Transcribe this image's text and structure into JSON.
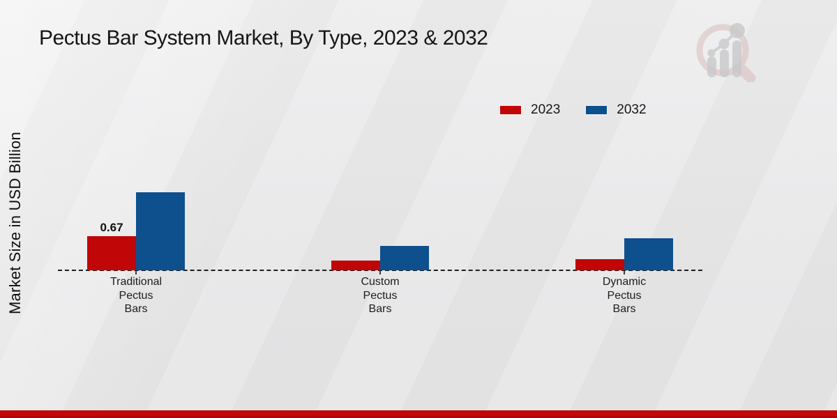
{
  "title": "Pectus Bar System Market, By Type, 2023 & 2032",
  "y_axis_label": "Market Size in USD Billion",
  "legend": [
    {
      "label": "2023",
      "color": "#c00606"
    },
    {
      "label": "2032",
      "color": "#0e4f8e"
    }
  ],
  "colors": {
    "series_2023": "#c00606",
    "series_2032": "#0e4f8e",
    "footer_band": "#c40707",
    "background": "#e8e8e9",
    "baseline": "#1c1c1c"
  },
  "watermark": {
    "name": "market-research-magnifier-logo"
  },
  "chart_data": {
    "type": "bar",
    "title": "Pectus Bar System Market, By Type, 2023 & 2032",
    "ylabel": "Market Size in USD Billion",
    "xlabel": "",
    "categories": [
      "Traditional\nPectus\nBars",
      "Custom\nPectus\nBars",
      "Dynamic\nPectus\nBars"
    ],
    "series": [
      {
        "name": "2023",
        "color": "#c00606",
        "values": [
          0.67,
          0.19,
          0.22
        ]
      },
      {
        "name": "2032",
        "color": "#0e4f8e",
        "values": [
          1.55,
          0.48,
          0.64
        ]
      }
    ],
    "bar_labels": [
      {
        "series": "2023",
        "category_index": 0,
        "text": "0.67"
      }
    ],
    "ylim": [
      0,
      1.7
    ],
    "grid": false,
    "baseline_style": "dashed",
    "legend_position": "top-right"
  }
}
